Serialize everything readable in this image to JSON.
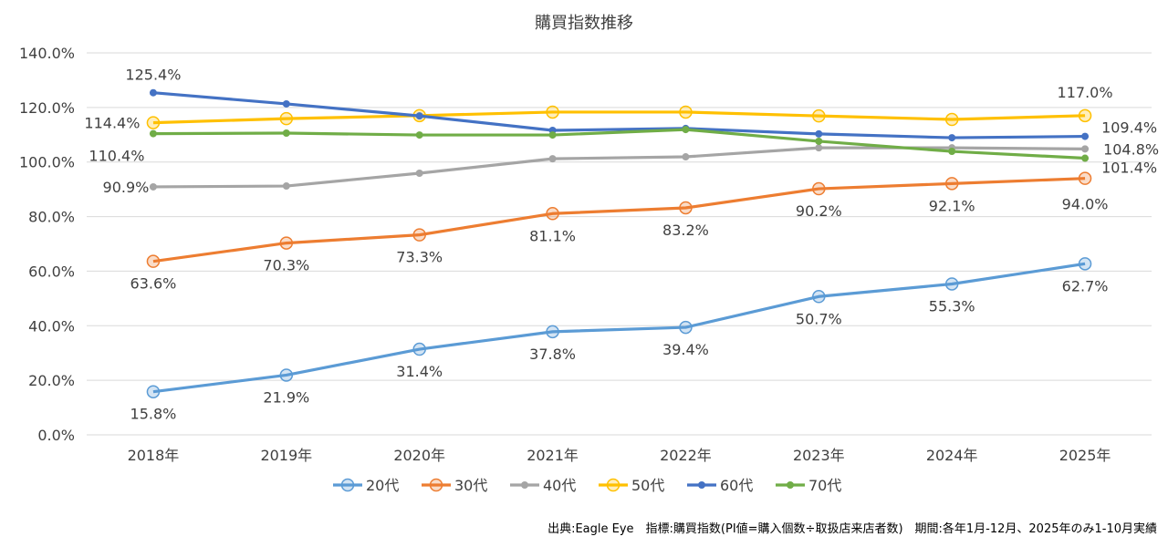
{
  "chart_data": {
    "type": "line",
    "title": "購買指数推移",
    "categories": [
      "2018年",
      "2019年",
      "2020年",
      "2021年",
      "2022年",
      "2023年",
      "2024年",
      "2025年"
    ],
    "ylim": [
      0,
      140
    ],
    "yticks": [
      "0.0%",
      "20.0%",
      "40.0%",
      "60.0%",
      "80.0%",
      "100.0%",
      "120.0%",
      "140.0%"
    ],
    "grid": true,
    "legend_placement": "bottom",
    "series": [
      {
        "name": "20代",
        "color": "#5b9bd5",
        "marker": "open-circle",
        "values": [
          15.8,
          21.9,
          31.4,
          37.8,
          39.4,
          50.7,
          55.3,
          62.7
        ],
        "labels": [
          "15.8%",
          "21.9%",
          "31.4%",
          "37.8%",
          "39.4%",
          "50.7%",
          "55.3%",
          "62.7%"
        ]
      },
      {
        "name": "30代",
        "color": "#ed7d31",
        "marker": "open-circle",
        "values": [
          63.6,
          70.3,
          73.3,
          81.1,
          83.2,
          90.2,
          92.1,
          94.0
        ],
        "labels": [
          "63.6%",
          "70.3%",
          "73.3%",
          "81.1%",
          "83.2%",
          "90.2%",
          "92.1%",
          "94.0%"
        ]
      },
      {
        "name": "40代",
        "color": "#a5a5a5",
        "marker": "dot",
        "values": [
          90.9,
          91.2,
          95.9,
          101.2,
          101.9,
          105.2,
          105.2,
          104.8
        ],
        "labels": [
          "90.9%",
          null,
          null,
          null,
          null,
          null,
          null,
          "104.8%"
        ]
      },
      {
        "name": "50代",
        "color": "#ffc000",
        "marker": "open-circle",
        "values": [
          114.4,
          115.9,
          117.0,
          118.3,
          118.3,
          116.9,
          115.6,
          117.0
        ],
        "labels": [
          "114.4%",
          null,
          null,
          null,
          null,
          null,
          null,
          "117.0%"
        ]
      },
      {
        "name": "60代",
        "color": "#4472c4",
        "marker": "dot",
        "values": [
          125.4,
          121.3,
          116.9,
          111.6,
          112.3,
          110.3,
          108.9,
          109.4
        ],
        "labels": [
          "125.4%",
          null,
          null,
          null,
          null,
          null,
          null,
          "109.4%"
        ]
      },
      {
        "name": "70代",
        "color": "#70ad47",
        "marker": "dot",
        "values": [
          110.4,
          110.6,
          109.9,
          109.9,
          111.9,
          107.6,
          103.9,
          101.4
        ],
        "labels": [
          "110.4%",
          null,
          null,
          null,
          null,
          null,
          null,
          "101.4%"
        ]
      }
    ]
  },
  "footnote": "出典:Eagle Eye　指標:購買指数(PI値=購入個数÷取扱店来店者数)　期間:各年1月-12月、2025年のみ1-10月実績"
}
